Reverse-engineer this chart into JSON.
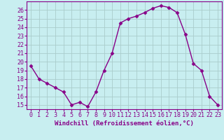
{
  "x": [
    0,
    1,
    2,
    3,
    4,
    5,
    6,
    7,
    8,
    9,
    10,
    11,
    12,
    13,
    14,
    15,
    16,
    17,
    18,
    19,
    20,
    21,
    22,
    23
  ],
  "y": [
    19.5,
    18.0,
    17.5,
    17.0,
    16.5,
    15.0,
    15.3,
    14.8,
    16.5,
    19.0,
    21.0,
    24.5,
    25.0,
    25.3,
    25.7,
    26.2,
    26.5,
    26.3,
    25.7,
    23.2,
    19.8,
    19.0,
    16.0,
    15.0
  ],
  "line_color": "#880088",
  "marker": "D",
  "marker_size": 2.5,
  "xlabel": "Windchill (Refroidissement éolien,°C)",
  "xlim": [
    -0.5,
    23.5
  ],
  "ylim": [
    14.5,
    27.0
  ],
  "yticks": [
    15,
    16,
    17,
    18,
    19,
    20,
    21,
    22,
    23,
    24,
    25,
    26
  ],
  "xticks": [
    0,
    1,
    2,
    3,
    4,
    5,
    6,
    7,
    8,
    9,
    10,
    11,
    12,
    13,
    14,
    15,
    16,
    17,
    18,
    19,
    20,
    21,
    22,
    23
  ],
  "background_color": "#c8eef0",
  "grid_color": "#aacccc",
  "tick_color": "#880088",
  "label_color": "#880088",
  "label_fontsize": 6.5,
  "tick_fontsize": 6.0,
  "line_width": 1.0
}
